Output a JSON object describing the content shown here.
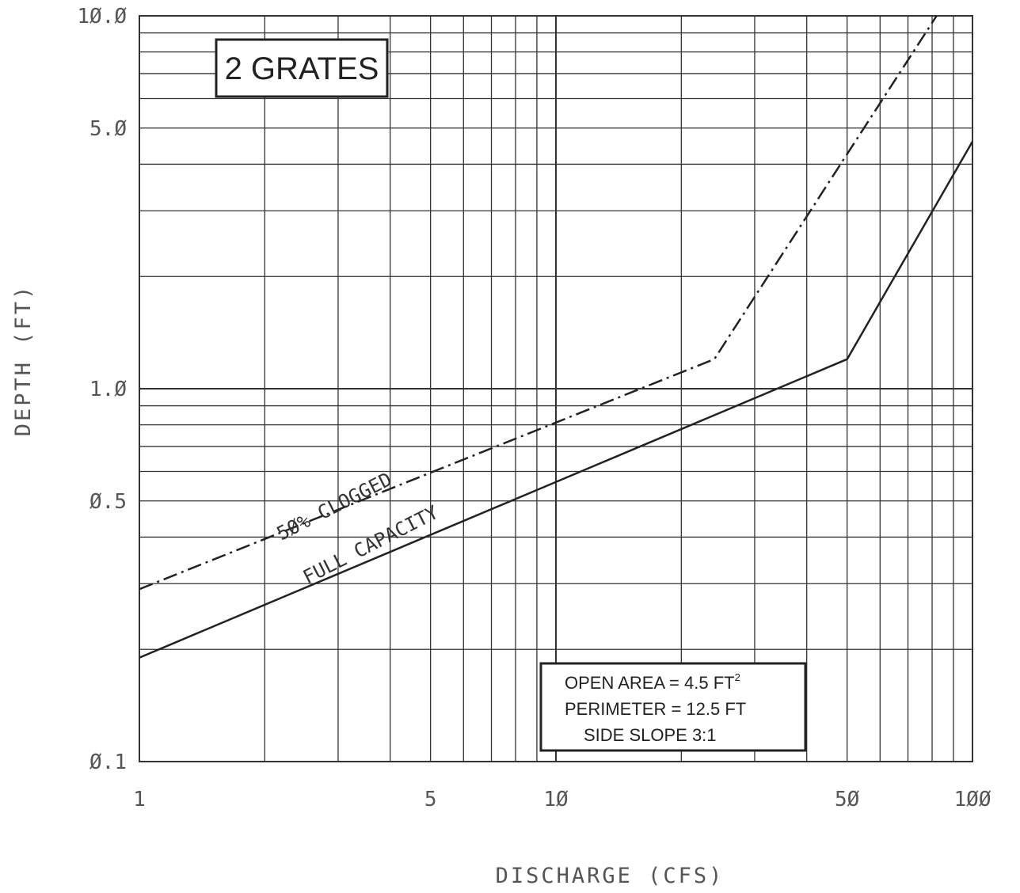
{
  "chart_data": {
    "type": "line",
    "xlabel": "DISCHARGE (CFS)",
    "ylabel": "DEPTH (FT)",
    "x_scale": "log",
    "y_scale": "log",
    "xlim": [
      1,
      100
    ],
    "ylim": [
      0.1,
      10
    ],
    "x_ticks": [
      {
        "value": 1,
        "label": "1"
      },
      {
        "value": 5,
        "label": "5"
      },
      {
        "value": 10,
        "label": "1Ø"
      },
      {
        "value": 50,
        "label": "5Ø"
      },
      {
        "value": 100,
        "label": "1ØØ"
      }
    ],
    "y_ticks": [
      {
        "value": 0.1,
        "label": "Ø.1"
      },
      {
        "value": 0.5,
        "label": "Ø.5"
      },
      {
        "value": 1,
        "label": "1.Ø"
      },
      {
        "value": 5,
        "label": "5.Ø"
      },
      {
        "value": 10,
        "label": "1Ø.Ø"
      }
    ],
    "grid": true,
    "series": [
      {
        "name": "FULL CAPACITY",
        "style": "solid",
        "x": [
          1,
          50,
          100
        ],
        "y": [
          0.19,
          1.2,
          4.6
        ]
      },
      {
        "name": "5Ø% CLOGGED",
        "style": "dash-dot",
        "x": [
          1,
          24,
          82
        ],
        "y": [
          0.29,
          1.2,
          10
        ]
      }
    ],
    "title_box": "2 GRATES",
    "notes": {
      "line1_prefix": "OPEN AREA = 4.5 FT",
      "line1_sup": "2",
      "line2": "PERIMETER = 12.5 FT",
      "line3": "SIDE SLOPE  3:1"
    }
  },
  "colors": {
    "line": "#222222",
    "grid": "#333333",
    "text": "#555555"
  }
}
